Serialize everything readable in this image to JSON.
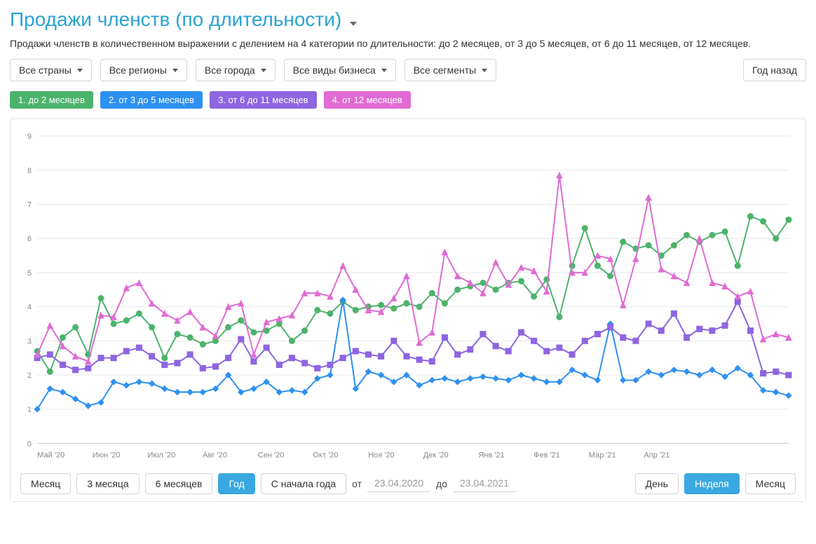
{
  "title": "Продажи членств (по длительности)",
  "description": "Продажи членств в количественном выражении с делением на 4 категории по длительности: до 2 месяцев, от 3 до 5 месяцев, от 6 до 11 месяцев, от 12 месяцев.",
  "filters": {
    "countries": "Все страны",
    "regions": "Все регионы",
    "cities": "Все города",
    "business": "Все виды бизнеса",
    "segments": "Все сегменты",
    "period_preset": "Год назад"
  },
  "legend": [
    {
      "label": "1. до 2 месяцев",
      "color": "#4cb36c"
    },
    {
      "label": "2. от 3 до 5 месяцев",
      "color": "#2e90f0"
    },
    {
      "label": "3. от 6 до 11 месяцев",
      "color": "#8d66e0"
    },
    {
      "label": "4. от 12 месяцев",
      "color": "#e06bd4"
    }
  ],
  "chart": {
    "type": "line",
    "ylim": [
      0,
      9
    ],
    "ytick_step": 1,
    "y_fontsize": 11,
    "x_fontsize": 11,
    "background_color": "#ffffff",
    "grid_color": "#e8e8e8",
    "baseline_color": "#cfcfcf",
    "line_width": 2,
    "marker_size": 4,
    "x_labels": [
      "Май '20",
      "Июн '20",
      "Июл '20",
      "Авг '20",
      "Сен '20",
      "Окт '20",
      "Ноя '20",
      "Дек '20",
      "Янв '21",
      "Фев '21",
      "Мар '21",
      "Апр '21"
    ],
    "points_per_label": 4.33,
    "series": [
      {
        "name": "1. до 2 месяцев",
        "color": "#4cb36c",
        "marker": "circle",
        "values": [
          2.7,
          2.1,
          3.1,
          3.4,
          2.6,
          4.25,
          3.5,
          3.6,
          3.8,
          3.4,
          2.5,
          3.2,
          3.1,
          2.9,
          3.0,
          3.4,
          3.6,
          3.25,
          3.3,
          3.5,
          3.0,
          3.3,
          3.9,
          3.8,
          4.15,
          3.9,
          4.0,
          4.05,
          3.95,
          4.1,
          4.0,
          4.4,
          4.1,
          4.5,
          4.6,
          4.7,
          4.5,
          4.7,
          4.75,
          4.3,
          4.8,
          3.7,
          5.2,
          6.3,
          5.2,
          4.9,
          5.9,
          5.7,
          5.8,
          5.5,
          5.8,
          6.1,
          5.9,
          6.1,
          6.2,
          5.2,
          6.65,
          6.5,
          6.0,
          6.55
        ]
      },
      {
        "name": "2. от 3 до 5 месяцев",
        "color": "#2e90f0",
        "marker": "diamond",
        "values": [
          1.0,
          1.6,
          1.5,
          1.3,
          1.1,
          1.2,
          1.8,
          1.7,
          1.8,
          1.75,
          1.6,
          1.5,
          1.5,
          1.5,
          1.6,
          2.0,
          1.5,
          1.6,
          1.8,
          1.5,
          1.55,
          1.5,
          1.9,
          2.0,
          4.2,
          1.6,
          2.1,
          2.0,
          1.8,
          2.0,
          1.7,
          1.85,
          1.9,
          1.8,
          1.9,
          1.95,
          1.9,
          1.85,
          2.0,
          1.9,
          1.8,
          1.8,
          2.15,
          2.0,
          1.85,
          3.5,
          1.85,
          1.85,
          2.1,
          2.0,
          2.15,
          2.1,
          2.0,
          2.15,
          1.95,
          2.2,
          2.0,
          1.55,
          1.5,
          1.4
        ]
      },
      {
        "name": "3. от 6 до 11 месяцев",
        "color": "#8d66e0",
        "marker": "square",
        "values": [
          2.5,
          2.6,
          2.3,
          2.15,
          2.2,
          2.5,
          2.5,
          2.7,
          2.8,
          2.55,
          2.3,
          2.35,
          2.6,
          2.2,
          2.25,
          2.5,
          3.05,
          2.4,
          2.8,
          2.3,
          2.5,
          2.35,
          2.2,
          2.3,
          2.5,
          2.7,
          2.6,
          2.55,
          3.0,
          2.55,
          2.45,
          2.4,
          3.1,
          2.6,
          2.75,
          3.2,
          2.85,
          2.7,
          3.25,
          3.0,
          2.7,
          2.8,
          2.6,
          3.0,
          3.2,
          3.4,
          3.1,
          3.0,
          3.5,
          3.3,
          3.8,
          3.1,
          3.35,
          3.3,
          3.45,
          4.15,
          3.3,
          2.05,
          2.1,
          2.0
        ]
      },
      {
        "name": "4. от 12 месяцев",
        "color": "#e06bd4",
        "marker": "triangle",
        "values": [
          2.6,
          3.45,
          2.85,
          2.55,
          2.4,
          3.75,
          3.7,
          4.55,
          4.7,
          4.1,
          3.8,
          3.6,
          3.85,
          3.4,
          3.15,
          4.0,
          4.1,
          2.6,
          3.55,
          3.65,
          3.75,
          4.4,
          4.4,
          4.3,
          5.2,
          4.5,
          3.9,
          3.85,
          4.25,
          4.9,
          2.95,
          3.25,
          5.6,
          4.9,
          4.7,
          4.4,
          5.3,
          4.65,
          5.15,
          5.05,
          4.45,
          7.85,
          5.0,
          5.0,
          5.5,
          5.4,
          4.05,
          5.4,
          7.2,
          5.1,
          4.9,
          4.7,
          6.0,
          4.7,
          4.6,
          4.3,
          4.45,
          3.05,
          3.2,
          3.1
        ]
      }
    ]
  },
  "range_controls": {
    "buttons": [
      "Месяц",
      "3 месяца",
      "6 месяцев",
      "Год",
      "С начала года"
    ],
    "active": "Год",
    "from_label": "от",
    "to_label": "до",
    "from_value": "23.04.2020",
    "to_value": "23.04.2021"
  },
  "grain_controls": {
    "buttons": [
      "День",
      "Неделя",
      "Месяц"
    ],
    "active": "Неделя"
  }
}
